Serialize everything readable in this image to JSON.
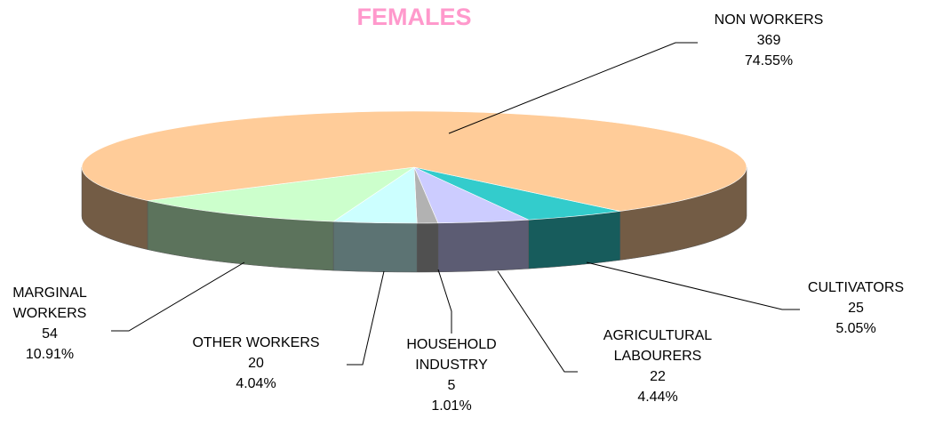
{
  "chart_data": {
    "type": "pie",
    "title": "FEMALES",
    "categories": [
      "CULTIVATORS",
      "AGRICULTURAL LABOURERS",
      "HOUSEHOLD INDUSTRY",
      "OTHER WORKERS",
      "MARGINAL WORKERS",
      "NON WORKERS"
    ],
    "values": [
      25,
      22,
      5,
      20,
      54,
      369
    ],
    "percentages": [
      5.05,
      4.44,
      1.01,
      4.04,
      10.91,
      74.55
    ],
    "percentage_labels": [
      "5.05%",
      "4.44%",
      "1.01%",
      "4.04%",
      "10.91%",
      "74.55%"
    ],
    "colors": [
      "#33cccc",
      "#ccccff",
      "#b2b2b2",
      "#ccffff",
      "#ccffcc",
      "#ffcc99"
    ]
  }
}
